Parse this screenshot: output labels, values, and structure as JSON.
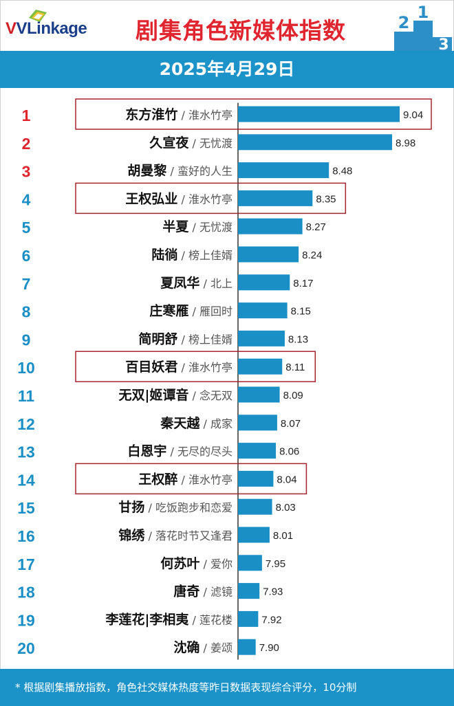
{
  "header": {
    "logo_text": "VLinkage",
    "title": "剧集角色新媒体指数",
    "date": "2025年4月29日",
    "podium_digits": [
      "2",
      "1",
      "3"
    ]
  },
  "footer": {
    "note": "* 根据剧集播放指数，角色社交媒体热度等昨日数据表现综合评分，10分制"
  },
  "colors": {
    "bar": "#1a8fc6",
    "rank_top": "#e0252f",
    "rank_rest": "#1a8fc6",
    "highlight_border": "#a8222e",
    "blue_bands": "#1b93c9"
  },
  "chart_data": {
    "type": "bar",
    "orientation": "horizontal",
    "title": "剧集角色新媒体指数",
    "subtitle": "2025年4月29日",
    "value_scale": "10分制",
    "series": [
      {
        "name": "新媒体指数",
        "values": [
          9.04,
          8.98,
          8.48,
          8.35,
          8.27,
          8.24,
          8.17,
          8.15,
          8.13,
          8.11,
          8.09,
          8.07,
          8.06,
          8.04,
          8.03,
          8.01,
          7.95,
          7.93,
          7.92,
          7.9
        ]
      }
    ],
    "rows": [
      {
        "rank": "1",
        "character": "东方淮竹",
        "drama": "淮水竹亭",
        "value": 9.04,
        "highlighted": true
      },
      {
        "rank": "2",
        "character": "久宣夜",
        "drama": "无忧渡",
        "value": 8.98,
        "highlighted": false
      },
      {
        "rank": "3",
        "character": "胡曼黎",
        "drama": "蛮好的人生",
        "value": 8.48,
        "highlighted": false
      },
      {
        "rank": "4",
        "character": "王权弘业",
        "drama": "淮水竹亭",
        "value": 8.35,
        "highlighted": true
      },
      {
        "rank": "5",
        "character": "半夏",
        "drama": "无忧渡",
        "value": 8.27,
        "highlighted": false
      },
      {
        "rank": "6",
        "character": "陆徜",
        "drama": "榜上佳婿",
        "value": 8.24,
        "highlighted": false
      },
      {
        "rank": "7",
        "character": "夏凤华",
        "drama": "北上",
        "value": 8.17,
        "highlighted": false
      },
      {
        "rank": "8",
        "character": "庄寒雁",
        "drama": "雁回时",
        "value": 8.15,
        "highlighted": false
      },
      {
        "rank": "9",
        "character": "简明舒",
        "drama": "榜上佳婿",
        "value": 8.13,
        "highlighted": false
      },
      {
        "rank": "10",
        "character": "百目妖君",
        "drama": "淮水竹亭",
        "value": 8.11,
        "highlighted": true
      },
      {
        "rank": "11",
        "character": "无双|姬谭音",
        "drama": "念无双",
        "value": 8.09,
        "highlighted": false
      },
      {
        "rank": "12",
        "character": "秦天越",
        "drama": "成家",
        "value": 8.07,
        "highlighted": false
      },
      {
        "rank": "13",
        "character": "白恩宇",
        "drama": "无尽的尽头",
        "value": 8.06,
        "highlighted": false
      },
      {
        "rank": "14",
        "character": "王权醉",
        "drama": "淮水竹亭",
        "value": 8.04,
        "highlighted": true
      },
      {
        "rank": "15",
        "character": "甘扬",
        "drama": "吃饭跑步和恋爱",
        "value": 8.03,
        "highlighted": false
      },
      {
        "rank": "16",
        "character": "锦绣",
        "drama": "落花时节又逢君",
        "value": 8.01,
        "highlighted": false
      },
      {
        "rank": "17",
        "character": "何苏叶",
        "drama": "爱你",
        "value": 7.95,
        "highlighted": false
      },
      {
        "rank": "18",
        "character": "唐奇",
        "drama": "滤镜",
        "value": 7.93,
        "highlighted": false
      },
      {
        "rank": "19",
        "character": "李莲花|李相夷",
        "drama": "莲花楼",
        "value": 7.92,
        "highlighted": false
      },
      {
        "rank": "20",
        "character": "沈确",
        "drama": "姜颂",
        "value": 7.9,
        "highlighted": false
      }
    ],
    "scale_min": 7.76,
    "scale_max": 9.04
  }
}
